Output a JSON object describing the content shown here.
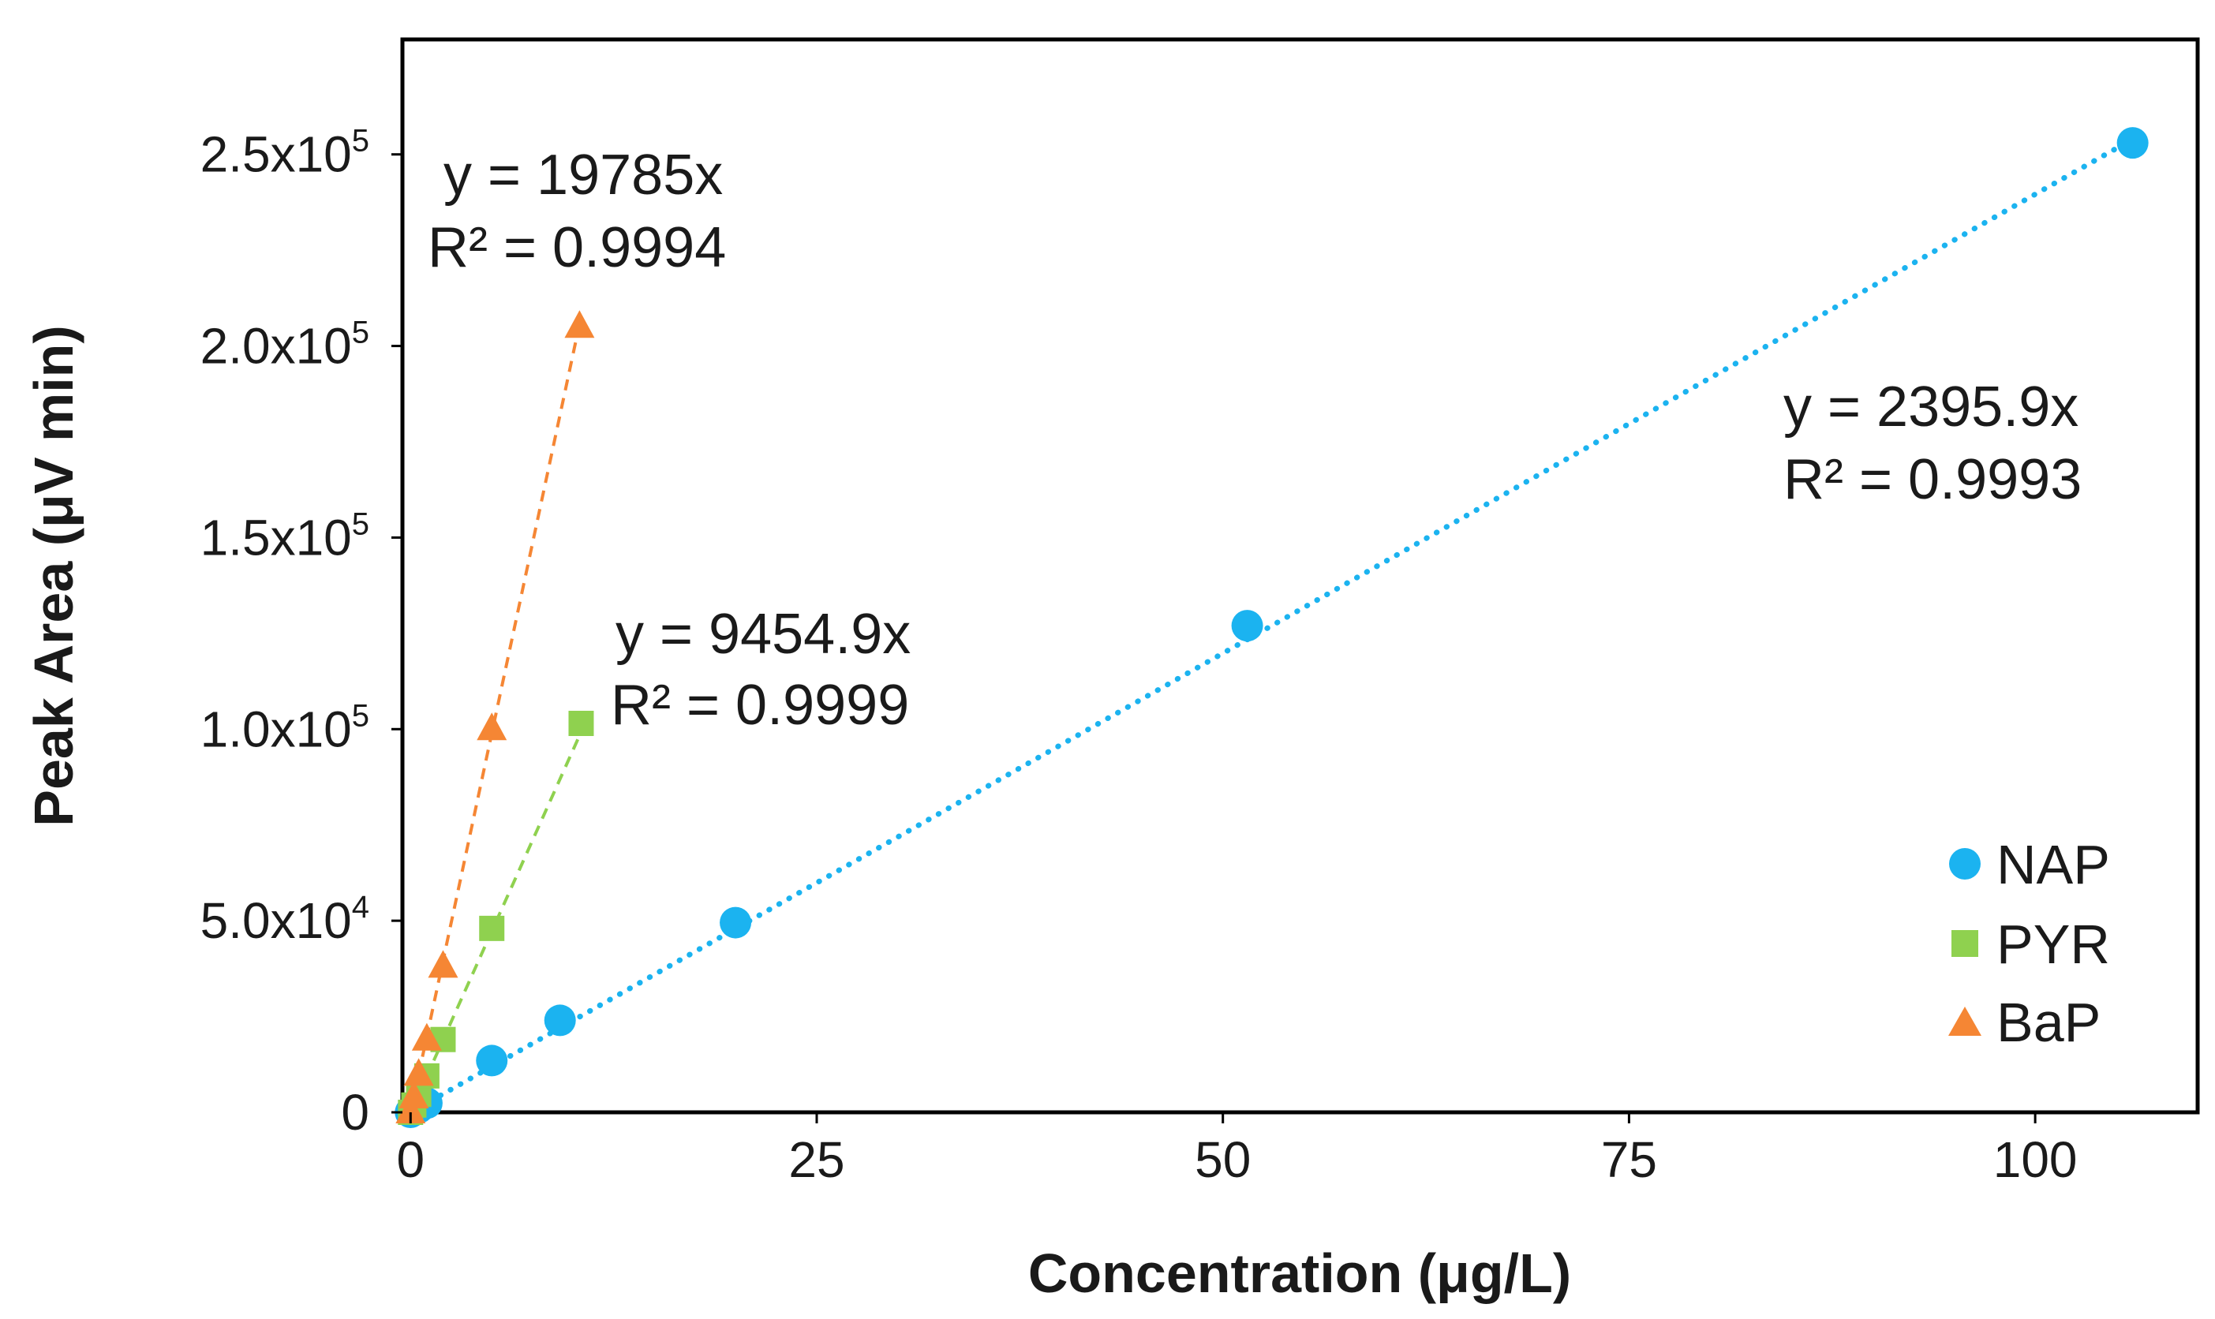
{
  "chart_data": {
    "type": "scatter",
    "title": "",
    "xlabel": "Concentration (μg/L)",
    "ylabel": "Peak Area (μV min)",
    "xlim": [
      -0.5,
      110
    ],
    "ylim": [
      0,
      280000
    ],
    "grid": false,
    "legend_position": "bottom-right",
    "x_ticks": [
      {
        "value": 0,
        "label": "0"
      },
      {
        "value": 25,
        "label": "25"
      },
      {
        "value": 50,
        "label": "50"
      },
      {
        "value": 75,
        "label": "75"
      },
      {
        "value": 100,
        "label": "100"
      }
    ],
    "y_ticks": [
      {
        "value": 0,
        "mantissa": "0",
        "exponent": ""
      },
      {
        "value": 50000,
        "mantissa": "5.0x10",
        "exponent": "4"
      },
      {
        "value": 100000,
        "mantissa": "1.0x10",
        "exponent": "5"
      },
      {
        "value": 150000,
        "mantissa": "1.5x10",
        "exponent": "5"
      },
      {
        "value": 200000,
        "mantissa": "2.0x10",
        "exponent": "5"
      },
      {
        "value": 250000,
        "mantissa": "2.5x10",
        "exponent": "5"
      }
    ],
    "series": [
      {
        "name": "NAP",
        "marker": "circle",
        "color": "#1BB3F0",
        "slope": 2395.9,
        "line_style": "dotted",
        "x": [
          0,
          0.5,
          1,
          5,
          9.2,
          20,
          51.5,
          106
        ],
        "y": [
          0,
          1200,
          2400,
          13500,
          24000,
          49500,
          127000,
          253000
        ]
      },
      {
        "name": "PYR",
        "marker": "square",
        "color": "#8FD14F",
        "slope": 9454.9,
        "line_style": "dashed",
        "x": [
          0,
          0.2,
          0.5,
          1,
          2,
          5,
          10.5
        ],
        "y": [
          0,
          1900,
          4700,
          9500,
          19000,
          48000,
          101500
        ]
      },
      {
        "name": "BaP",
        "marker": "triangle",
        "color": "#F58634",
        "slope": 19785,
        "line_style": "dashed",
        "x": [
          0,
          0.2,
          0.5,
          1,
          2,
          5,
          10.4
        ],
        "y": [
          0,
          3900,
          9800,
          19000,
          38000,
          100000,
          205000
        ]
      }
    ],
    "annotations": [
      {
        "series": "BaP",
        "equation": "y = 19785x",
        "r2": "R² = 0.9994"
      },
      {
        "series": "PYR",
        "equation": "y = 9454.9x",
        "r2": "R² = 0.9999"
      },
      {
        "series": "NAP",
        "equation": "y = 2395.9x",
        "r2": "R² = 0.9993"
      }
    ]
  }
}
